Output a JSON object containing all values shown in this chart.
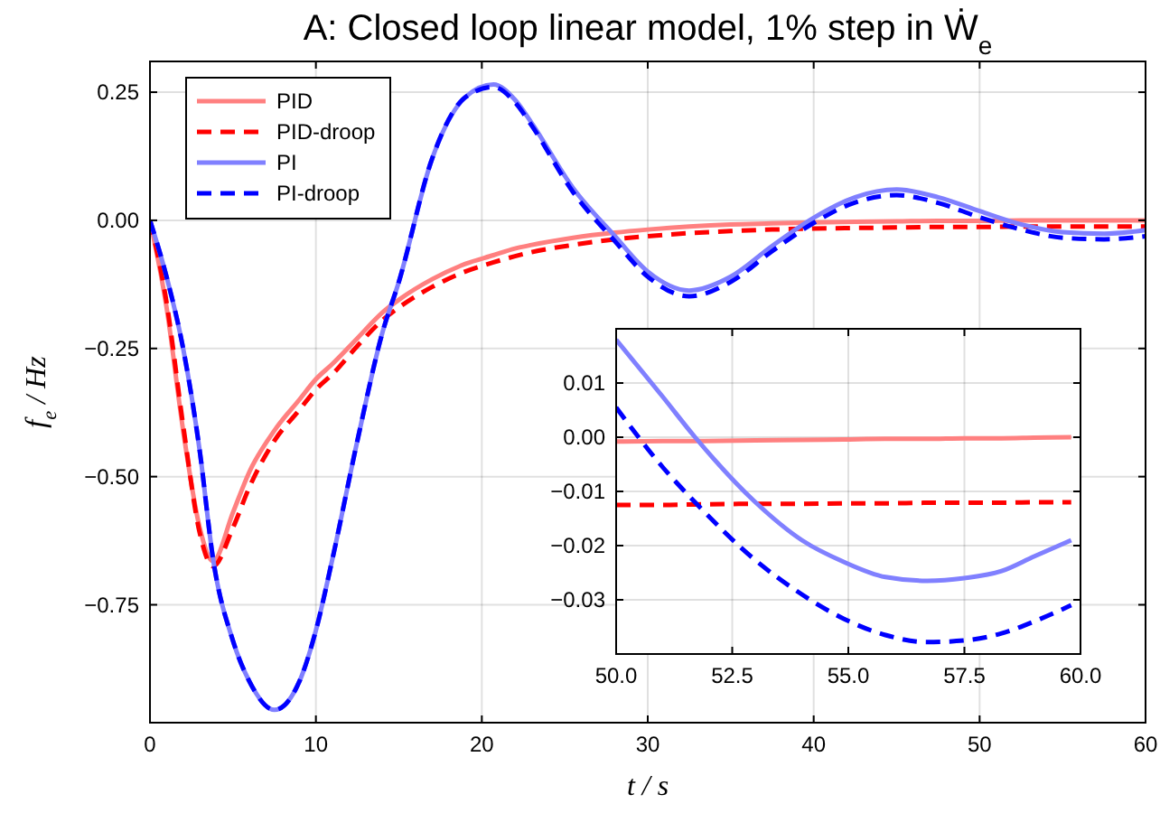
{
  "chart_data": [
    {
      "type": "line",
      "title": "A: Closed loop linear model, 1% step in Ẇ$_{e}$",
      "xlabel": "t / s",
      "ylabel": "f$_{e}$ / Hz",
      "xlim": [
        0,
        60
      ],
      "ylim": [
        -0.98,
        0.31
      ],
      "xticks": [
        0,
        10,
        20,
        30,
        40,
        50,
        60
      ],
      "yticks": [
        {
          "value": -0.75,
          "label": "−0.75"
        },
        {
          "value": -0.5,
          "label": "−0.50"
        },
        {
          "value": -0.25,
          "label": "−0.25"
        },
        {
          "value": 0,
          "label": "0.00"
        },
        {
          "value": 0.25,
          "label": "0.25"
        }
      ],
      "grid": true,
      "legend": "top left",
      "x": [
        0,
        1,
        2,
        3,
        3.8,
        5,
        6,
        7.5,
        9,
        10,
        11,
        12.5,
        14,
        15,
        17,
        19,
        20.7,
        22,
        23,
        25.5,
        28,
        30,
        32.5,
        35,
        37.5,
        40,
        42.5,
        45,
        47.5,
        50,
        52.5,
        55,
        57.5,
        60
      ],
      "series": [
        {
          "name": "PID",
          "color": "#ff8080",
          "line_style": "solid",
          "values": [
            0,
            -0.17,
            -0.41,
            -0.6,
            -0.665,
            -0.57,
            -0.49,
            -0.41,
            -0.35,
            -0.31,
            -0.28,
            -0.23,
            -0.18,
            -0.155,
            -0.115,
            -0.085,
            -0.068,
            -0.055,
            -0.048,
            -0.034,
            -0.024,
            -0.018,
            -0.012,
            -0.008,
            -0.006,
            -0.004,
            -0.003,
            -0.002,
            -0.001,
            -0.001,
            0,
            0,
            0,
            0
          ]
        },
        {
          "name": "PID-droop",
          "color": "#ff0000",
          "line_style": "dashed",
          "values": [
            0,
            -0.16,
            -0.4,
            -0.61,
            -0.675,
            -0.6,
            -0.52,
            -0.43,
            -0.37,
            -0.33,
            -0.3,
            -0.245,
            -0.195,
            -0.17,
            -0.13,
            -0.1,
            -0.082,
            -0.07,
            -0.062,
            -0.048,
            -0.037,
            -0.031,
            -0.025,
            -0.021,
            -0.018,
            -0.016,
            -0.015,
            -0.014,
            -0.013,
            -0.013,
            -0.012,
            -0.012,
            -0.012,
            -0.012
          ]
        },
        {
          "name": "PI",
          "color": "#8080ff",
          "line_style": "solid",
          "values": [
            0,
            -0.11,
            -0.25,
            -0.45,
            -0.66,
            -0.82,
            -0.9,
            -0.955,
            -0.9,
            -0.8,
            -0.66,
            -0.43,
            -0.22,
            -0.12,
            0.12,
            0.24,
            0.265,
            0.235,
            0.19,
            0.063,
            -0.03,
            -0.1,
            -0.137,
            -0.11,
            -0.05,
            0.005,
            0.045,
            0.06,
            0.045,
            0.018,
            -0.008,
            -0.023,
            -0.026,
            -0.019
          ]
        },
        {
          "name": "PI-droop",
          "color": "#0000ff",
          "line_style": "dashed",
          "values": [
            0,
            -0.11,
            -0.25,
            -0.45,
            -0.66,
            -0.82,
            -0.9,
            -0.955,
            -0.9,
            -0.8,
            -0.66,
            -0.43,
            -0.22,
            -0.12,
            0.12,
            0.24,
            0.26,
            0.23,
            0.185,
            0.055,
            -0.04,
            -0.11,
            -0.148,
            -0.12,
            -0.06,
            -0.005,
            0.035,
            0.049,
            0.034,
            0.006,
            -0.018,
            -0.034,
            -0.037,
            -0.031
          ]
        }
      ]
    },
    {
      "type": "line",
      "xlim": [
        50,
        60
      ],
      "ylim": [
        -0.04,
        0.02
      ],
      "xticks": [
        {
          "value": 50,
          "label": "50.0"
        },
        52.5,
        {
          "value": 55,
          "label": "55.0"
        },
        57.5,
        {
          "value": 60,
          "label": "60.0"
        }
      ],
      "yticks": [
        {
          "value": -0.03,
          "label": "−0.03"
        },
        {
          "value": -0.02,
          "label": "−0.02"
        },
        {
          "value": -0.01,
          "label": "−0.01"
        },
        {
          "value": 0,
          "label": "0.00"
        },
        0.01
      ],
      "grid": true,
      "x": [
        50,
        51,
        51.7,
        53,
        54,
        54.9,
        55.8,
        56.7,
        57.5,
        58.3,
        59,
        59.8
      ],
      "series": [
        {
          "color": "#ff8080",
          "line_style": "solid",
          "values": [
            -0.0008,
            -0.0007,
            -0.0007,
            -0.0006,
            -0.0005,
            -0.0004,
            -0.0003,
            -0.0003,
            -0.0002,
            -0.0002,
            -0.0001,
            0
          ]
        },
        {
          "color": "#ff0000",
          "line_style": "dashed",
          "values": [
            -0.0125,
            -0.0125,
            -0.0124,
            -0.0123,
            -0.0123,
            -0.0122,
            -0.0122,
            -0.0121,
            -0.0121,
            -0.0121,
            -0.012,
            -0.012
          ]
        },
        {
          "color": "#8080ff",
          "line_style": "solid",
          "values": [
            0.018,
            0.0075,
            0,
            -0.012,
            -0.019,
            -0.023,
            -0.0258,
            -0.0265,
            -0.026,
            -0.0247,
            -0.022,
            -0.019
          ]
        },
        {
          "color": "#0000ff",
          "line_style": "dashed",
          "values": [
            0.0055,
            -0.0055,
            -0.012,
            -0.0227,
            -0.029,
            -0.0335,
            -0.0365,
            -0.0378,
            -0.0375,
            -0.0362,
            -0.034,
            -0.031
          ]
        }
      ]
    }
  ]
}
